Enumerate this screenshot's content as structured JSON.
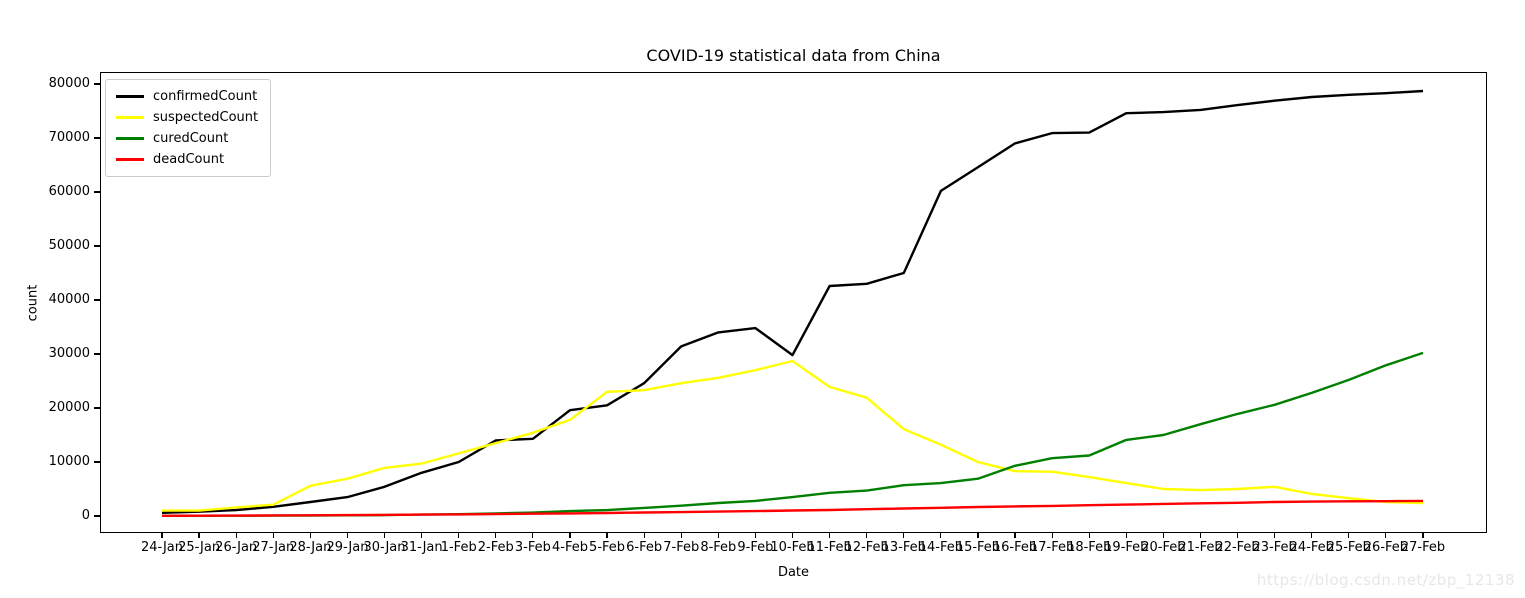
{
  "title": "COVID-19 statistical data from China",
  "watermark": "https://blog.csdn.net/zbp_12138",
  "colors": {
    "confirmed": "#000000",
    "suspected": "#ffff00",
    "cured": "#008000",
    "dead": "#ff0000",
    "spine": "#000000",
    "legend_border": "#cccccc",
    "watermark_text": "#e7e7ea"
  },
  "chart_data": {
    "type": "line",
    "title": "COVID-19 statistical data from China",
    "xlabel": "Date",
    "ylabel": "count",
    "ylim": [
      0,
      80000
    ],
    "grid": false,
    "legend_position": "upper-left",
    "yticks": [
      {
        "value": 0,
        "label": "0"
      },
      {
        "value": 10000,
        "label": "10000"
      },
      {
        "value": 20000,
        "label": "20000"
      },
      {
        "value": 30000,
        "label": "30000"
      },
      {
        "value": 40000,
        "label": "40000"
      },
      {
        "value": 50000,
        "label": "50000"
      },
      {
        "value": 60000,
        "label": "60000"
      },
      {
        "value": 70000,
        "label": "70000"
      },
      {
        "value": 80000,
        "label": "80000"
      }
    ],
    "categories": [
      "24-Jan",
      "25-Jan",
      "26-Jan",
      "27-Jan",
      "28-Jan",
      "29-Jan",
      "30-Jan",
      "31-Jan",
      "1-Feb",
      "2-Feb",
      "3-Feb",
      "4-Feb",
      "5-Feb",
      "6-Feb",
      "7-Feb",
      "8-Feb",
      "9-Feb",
      "10-Feb",
      "11-Feb",
      "12-Feb",
      "13-Feb",
      "14-Feb",
      "15-Feb",
      "16-Feb",
      "17-Feb",
      "18-Feb",
      "19-Feb",
      "20-Feb",
      "21-Feb",
      "22-Feb",
      "23-Feb",
      "24-Feb",
      "25-Feb",
      "26-Feb",
      "27-Feb"
    ],
    "series": [
      {
        "name": "confirmedCount",
        "color": "#000000",
        "values": [
          600,
          800,
          1100,
          1700,
          2600,
          3500,
          5400,
          8000,
          10000,
          14000,
          14300,
          19600,
          20500,
          24600,
          31400,
          34000,
          34800,
          29800,
          42600,
          43000,
          45000,
          60200,
          64600,
          69000,
          70900,
          71000,
          74600,
          74800,
          75200,
          76100,
          76900,
          77600,
          78000,
          78300,
          78700
        ]
      },
      {
        "name": "suspectedCount",
        "color": "#ffff00",
        "values": [
          1000,
          1000,
          1600,
          2100,
          5600,
          6900,
          8900,
          9700,
          11600,
          13500,
          15400,
          17800,
          23000,
          23300,
          24600,
          25600,
          27000,
          28700,
          23900,
          21900,
          16100,
          13200,
          10000,
          8300,
          8200,
          7200,
          6100,
          5000,
          4800,
          5000,
          5400,
          4100,
          3300,
          2600,
          2400
        ]
      },
      {
        "name": "curedCount",
        "color": "#008000",
        "values": [
          40,
          50,
          60,
          80,
          100,
          130,
          170,
          250,
          330,
          480,
          630,
          900,
          1100,
          1500,
          1900,
          2400,
          2800,
          3500,
          4300,
          4700,
          5700,
          6100,
          6900,
          9300,
          10700,
          11200,
          14100,
          15000,
          17000,
          18900,
          20600,
          22800,
          25200,
          27900,
          30200
        ]
      },
      {
        "name": "deadCount",
        "color": "#ff0000",
        "values": [
          40,
          60,
          80,
          110,
          130,
          170,
          210,
          260,
          300,
          360,
          430,
          490,
          560,
          640,
          720,
          810,
          910,
          1020,
          1110,
          1260,
          1380,
          1520,
          1660,
          1770,
          1870,
          2000,
          2120,
          2240,
          2350,
          2440,
          2590,
          2660,
          2720,
          2740,
          2790
        ]
      }
    ]
  }
}
